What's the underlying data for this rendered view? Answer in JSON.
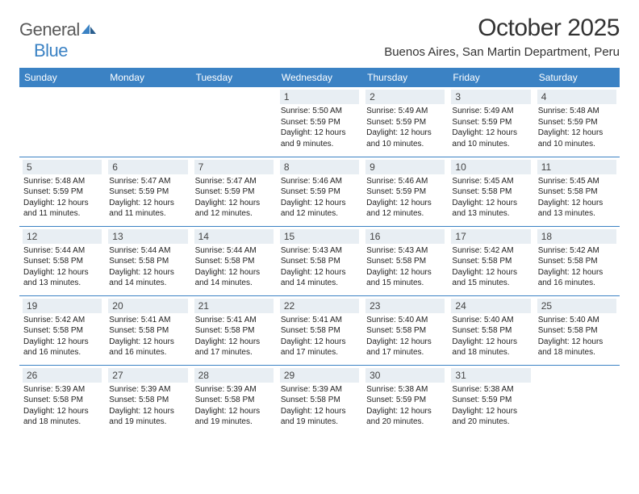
{
  "brand": {
    "part1": "General",
    "part2": "Blue"
  },
  "title": "October 2025",
  "location": "Buenos Aires, San Martin Department, Peru",
  "colors": {
    "header_bg": "#3b82c4",
    "header_text": "#ffffff",
    "daynum_bg": "#e8eef3",
    "border": "#3b82c4",
    "text": "#222222",
    "logo_gray": "#5a5a5a",
    "logo_blue": "#3b82c4"
  },
  "dayNames": [
    "Sunday",
    "Monday",
    "Tuesday",
    "Wednesday",
    "Thursday",
    "Friday",
    "Saturday"
  ],
  "startOffset": 3,
  "days": [
    {
      "n": 1,
      "sunrise": "5:50 AM",
      "sunset": "5:59 PM",
      "daylight": "12 hours and 9 minutes."
    },
    {
      "n": 2,
      "sunrise": "5:49 AM",
      "sunset": "5:59 PM",
      "daylight": "12 hours and 10 minutes."
    },
    {
      "n": 3,
      "sunrise": "5:49 AM",
      "sunset": "5:59 PM",
      "daylight": "12 hours and 10 minutes."
    },
    {
      "n": 4,
      "sunrise": "5:48 AM",
      "sunset": "5:59 PM",
      "daylight": "12 hours and 10 minutes."
    },
    {
      "n": 5,
      "sunrise": "5:48 AM",
      "sunset": "5:59 PM",
      "daylight": "12 hours and 11 minutes."
    },
    {
      "n": 6,
      "sunrise": "5:47 AM",
      "sunset": "5:59 PM",
      "daylight": "12 hours and 11 minutes."
    },
    {
      "n": 7,
      "sunrise": "5:47 AM",
      "sunset": "5:59 PM",
      "daylight": "12 hours and 12 minutes."
    },
    {
      "n": 8,
      "sunrise": "5:46 AM",
      "sunset": "5:59 PM",
      "daylight": "12 hours and 12 minutes."
    },
    {
      "n": 9,
      "sunrise": "5:46 AM",
      "sunset": "5:59 PM",
      "daylight": "12 hours and 12 minutes."
    },
    {
      "n": 10,
      "sunrise": "5:45 AM",
      "sunset": "5:58 PM",
      "daylight": "12 hours and 13 minutes."
    },
    {
      "n": 11,
      "sunrise": "5:45 AM",
      "sunset": "5:58 PM",
      "daylight": "12 hours and 13 minutes."
    },
    {
      "n": 12,
      "sunrise": "5:44 AM",
      "sunset": "5:58 PM",
      "daylight": "12 hours and 13 minutes."
    },
    {
      "n": 13,
      "sunrise": "5:44 AM",
      "sunset": "5:58 PM",
      "daylight": "12 hours and 14 minutes."
    },
    {
      "n": 14,
      "sunrise": "5:44 AM",
      "sunset": "5:58 PM",
      "daylight": "12 hours and 14 minutes."
    },
    {
      "n": 15,
      "sunrise": "5:43 AM",
      "sunset": "5:58 PM",
      "daylight": "12 hours and 14 minutes."
    },
    {
      "n": 16,
      "sunrise": "5:43 AM",
      "sunset": "5:58 PM",
      "daylight": "12 hours and 15 minutes."
    },
    {
      "n": 17,
      "sunrise": "5:42 AM",
      "sunset": "5:58 PM",
      "daylight": "12 hours and 15 minutes."
    },
    {
      "n": 18,
      "sunrise": "5:42 AM",
      "sunset": "5:58 PM",
      "daylight": "12 hours and 16 minutes."
    },
    {
      "n": 19,
      "sunrise": "5:42 AM",
      "sunset": "5:58 PM",
      "daylight": "12 hours and 16 minutes."
    },
    {
      "n": 20,
      "sunrise": "5:41 AM",
      "sunset": "5:58 PM",
      "daylight": "12 hours and 16 minutes."
    },
    {
      "n": 21,
      "sunrise": "5:41 AM",
      "sunset": "5:58 PM",
      "daylight": "12 hours and 17 minutes."
    },
    {
      "n": 22,
      "sunrise": "5:41 AM",
      "sunset": "5:58 PM",
      "daylight": "12 hours and 17 minutes."
    },
    {
      "n": 23,
      "sunrise": "5:40 AM",
      "sunset": "5:58 PM",
      "daylight": "12 hours and 17 minutes."
    },
    {
      "n": 24,
      "sunrise": "5:40 AM",
      "sunset": "5:58 PM",
      "daylight": "12 hours and 18 minutes."
    },
    {
      "n": 25,
      "sunrise": "5:40 AM",
      "sunset": "5:58 PM",
      "daylight": "12 hours and 18 minutes."
    },
    {
      "n": 26,
      "sunrise": "5:39 AM",
      "sunset": "5:58 PM",
      "daylight": "12 hours and 18 minutes."
    },
    {
      "n": 27,
      "sunrise": "5:39 AM",
      "sunset": "5:58 PM",
      "daylight": "12 hours and 19 minutes."
    },
    {
      "n": 28,
      "sunrise": "5:39 AM",
      "sunset": "5:58 PM",
      "daylight": "12 hours and 19 minutes."
    },
    {
      "n": 29,
      "sunrise": "5:39 AM",
      "sunset": "5:58 PM",
      "daylight": "12 hours and 19 minutes."
    },
    {
      "n": 30,
      "sunrise": "5:38 AM",
      "sunset": "5:59 PM",
      "daylight": "12 hours and 20 minutes."
    },
    {
      "n": 31,
      "sunrise": "5:38 AM",
      "sunset": "5:59 PM",
      "daylight": "12 hours and 20 minutes."
    }
  ],
  "labels": {
    "sunrise": "Sunrise:",
    "sunset": "Sunset:",
    "daylight": "Daylight:"
  }
}
